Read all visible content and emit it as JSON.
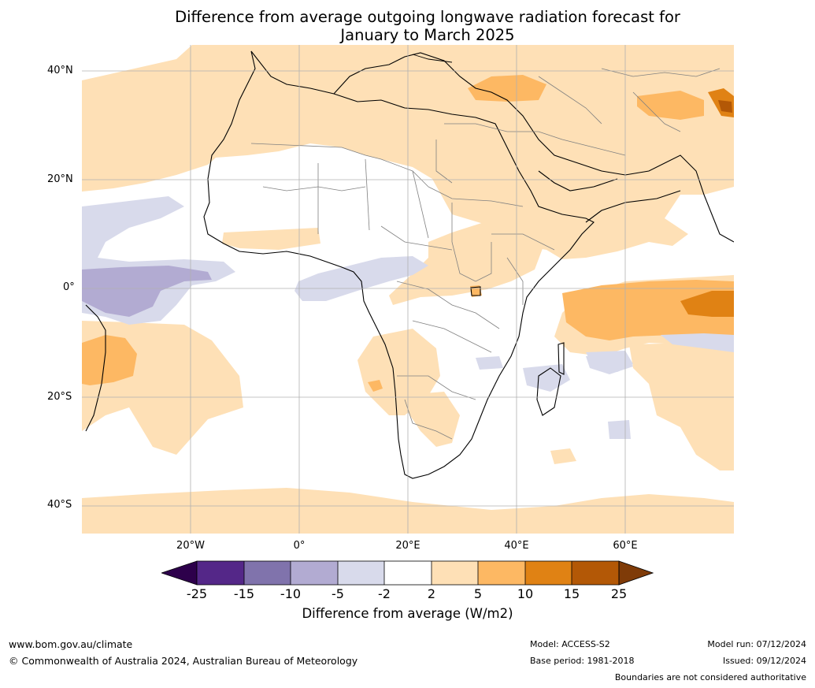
{
  "title": {
    "line1": "Difference from average outgoing longwave radiation forecast for",
    "line2": "January to March 2025"
  },
  "map": {
    "lat_labels": [
      "40°N",
      "20°N",
      "0°",
      "20°S",
      "40°S"
    ],
    "lon_labels": [
      "20°W",
      "0°",
      "20°E",
      "40°E",
      "60°E"
    ]
  },
  "legend": {
    "title": "Difference from average (W/m2)",
    "ticks": [
      "-25",
      "-15",
      "-10",
      "-5",
      "-2",
      "2",
      "5",
      "10",
      "15",
      "25"
    ],
    "colors": {
      "under": "#2d004b",
      "bins": [
        "#542788",
        "#8073ac",
        "#b2abd2",
        "#d8daeb",
        "#ffffff",
        "#fee0b6",
        "#fdb863",
        "#e08214",
        "#b35806"
      ],
      "over": "#7f3b08"
    }
  },
  "footer": {
    "website": "www.bom.gov.au/climate",
    "copyright": "© Commonwealth of Australia 2024, Australian Bureau of Meteorology",
    "model": "Model: ACCESS-S2",
    "base_period": "Base period: 1981-2018",
    "model_run": "Model run: 07/12/2024",
    "issued": "Issued: 09/12/2024",
    "disclaimer": "Boundaries are not considered authoritative"
  }
}
